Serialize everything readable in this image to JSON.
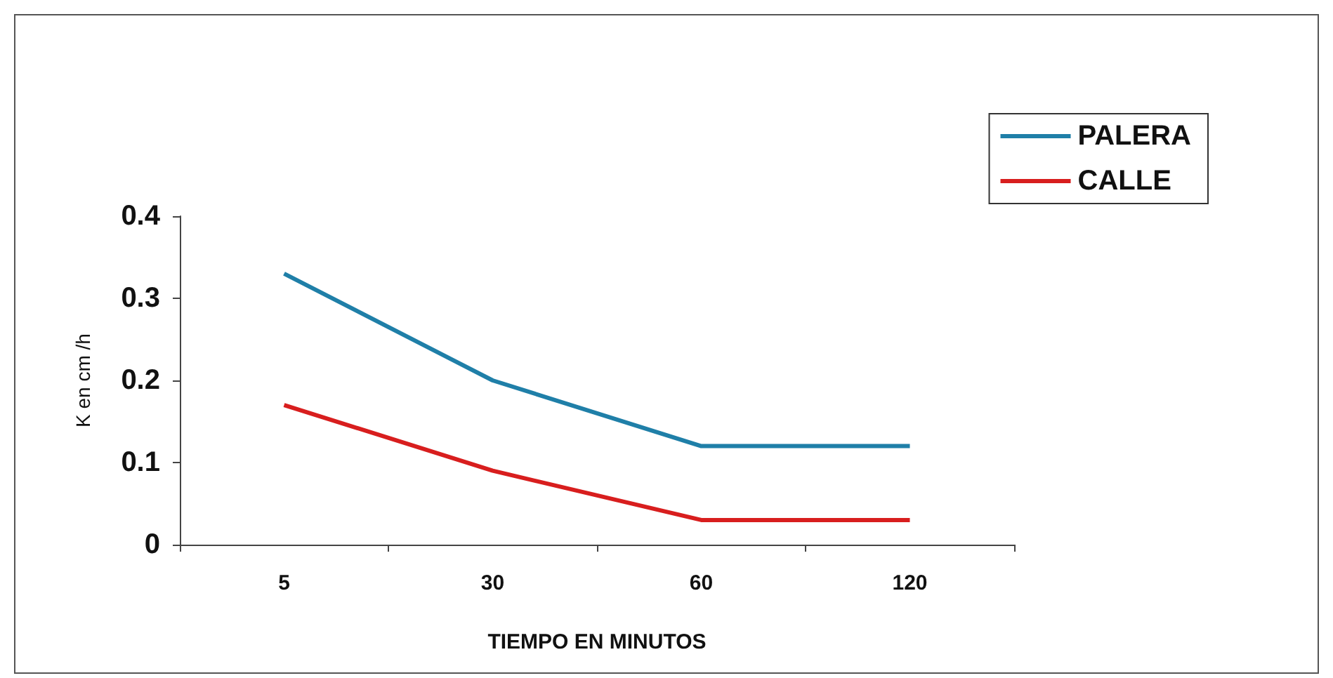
{
  "chart_data": {
    "type": "line",
    "xlabel": "TIEMPO EN MINUTOS",
    "ylabel": "K en cm /h",
    "categories": [
      "5",
      "30",
      "60",
      "120"
    ],
    "series": [
      {
        "name": "PALERA",
        "color": "#1f7fa8",
        "values": [
          0.33,
          0.2,
          0.12,
          0.12
        ]
      },
      {
        "name": "CALLE",
        "color": "#d81e1e",
        "values": [
          0.17,
          0.09,
          0.03,
          0.03
        ]
      }
    ],
    "ylim": [
      0,
      0.4
    ],
    "yticks": [
      0,
      0.1,
      0.2,
      0.3,
      0.4
    ],
    "grid": false,
    "legend": "top right",
    "marker": "none",
    "line_style": "solid"
  }
}
